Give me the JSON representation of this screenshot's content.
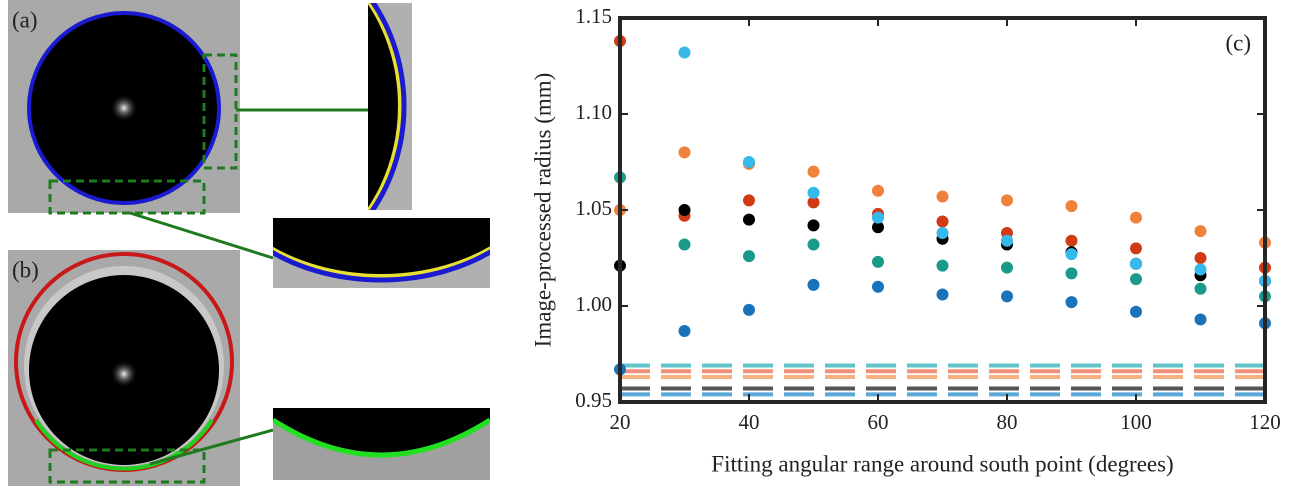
{
  "panels": {
    "a_label": "(a)",
    "b_label": "(b)"
  },
  "chart_data": {
    "type": "scatter",
    "annotation": "(c)",
    "x_label": "Fitting angular range around south point (degrees)",
    "y_label": "Image-processed radius (mm)",
    "x": [
      20,
      30,
      40,
      50,
      60,
      70,
      80,
      90,
      100,
      110,
      120
    ],
    "series": [
      {
        "color": "#d03b15",
        "values": [
          1.138,
          1.047,
          1.055,
          1.054,
          1.048,
          1.044,
          1.038,
          1.034,
          1.03,
          1.025,
          1.02
        ]
      },
      {
        "color": "#f0813a",
        "values": [
          1.05,
          1.08,
          1.074,
          1.07,
          1.06,
          1.057,
          1.055,
          1.052,
          1.046,
          1.039,
          1.033
        ]
      },
      {
        "color": "#000000",
        "values": [
          1.021,
          1.05,
          1.045,
          1.042,
          1.041,
          1.035,
          1.032,
          1.028,
          1.022,
          1.016,
          1.013
        ]
      },
      {
        "color": "#1a9a88",
        "values": [
          1.067,
          1.032,
          1.026,
          1.032,
          1.023,
          1.021,
          1.02,
          1.017,
          1.014,
          1.009,
          1.005
        ]
      },
      {
        "color": "#1a72b8",
        "values": [
          0.967,
          0.987,
          0.998,
          1.011,
          1.01,
          1.006,
          1.005,
          1.002,
          0.997,
          0.993,
          0.991
        ]
      },
      {
        "color": "#35b8ea",
        "values": [
          null,
          1.132,
          1.075,
          1.059,
          1.046,
          1.038,
          1.034,
          1.027,
          1.022,
          1.019,
          1.013
        ]
      }
    ],
    "reference_lines": [
      {
        "color": "#5fc4c8",
        "value": 0.969
      },
      {
        "color": "#f0907a",
        "value": 0.966
      },
      {
        "color": "#f5b080",
        "value": 0.963
      },
      {
        "color": "#555555",
        "value": 0.957
      },
      {
        "color": "#5aa8d8",
        "value": 0.954
      }
    ],
    "xlim": [
      20,
      120
    ],
    "xticks": [
      20,
      40,
      60,
      80,
      100,
      120
    ],
    "ylim": [
      0.95,
      1.15
    ],
    "yticks": [
      0.95,
      {
        "value": 1.0,
        "label": "1.00"
      },
      1.05,
      {
        "value": 1.1,
        "label": "1.10"
      },
      1.15
    ]
  }
}
